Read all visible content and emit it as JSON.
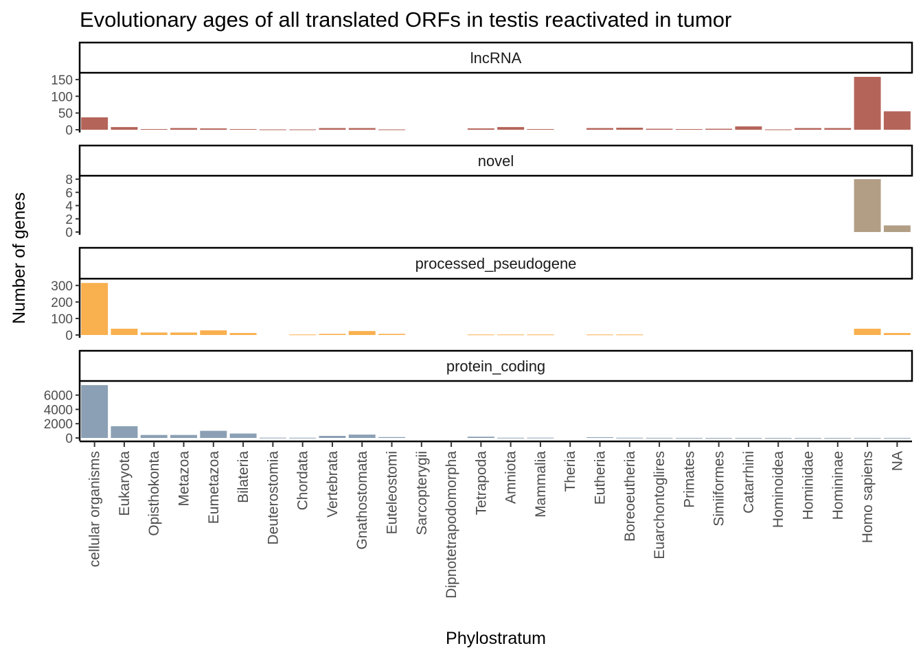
{
  "chart_data": {
    "type": "bar",
    "title": "Evolutionary ages of all translated ORFs in testis reactivated in tumor",
    "xlabel": "Phylostratum",
    "ylabel": "Number of genes",
    "grid": false,
    "legend": "none",
    "categories": [
      "cellular organisms",
      "Eukaryota",
      "Opisthokonta",
      "Metazoa",
      "Eumetazoa",
      "Bilateria",
      "Deuterostomia",
      "Chordata",
      "Vertebrata",
      "Gnathostomata",
      "Euteleostomi",
      "Sarcopterygii",
      "Dipnotetrapodomorpha",
      "Tetrapoda",
      "Amniota",
      "Mammalia",
      "Theria",
      "Eutheria",
      "Boreoeutheria",
      "Euarchontoglires",
      "Primates",
      "Simiiformes",
      "Catarrhini",
      "Hominoidea",
      "Hominidae",
      "Homininae",
      "Homo sapiens",
      "NA"
    ],
    "facets": [
      {
        "name": "lncRNA",
        "color": "#B5645A",
        "ylim": [
          0,
          160
        ],
        "yticks": [
          0,
          50,
          100,
          150
        ],
        "values": [
          37,
          8,
          2,
          5,
          4,
          2,
          1,
          1,
          5,
          5,
          1,
          null,
          null,
          4,
          8,
          2,
          null,
          5,
          6,
          3,
          2,
          3,
          10,
          1,
          5,
          5,
          158,
          55
        ]
      },
      {
        "name": "novel",
        "color": "#B19E85",
        "ylim": [
          0,
          8
        ],
        "yticks": [
          0,
          2,
          4,
          6,
          8
        ],
        "values": [
          null,
          null,
          null,
          null,
          null,
          null,
          null,
          null,
          null,
          null,
          null,
          null,
          null,
          null,
          null,
          null,
          null,
          null,
          null,
          null,
          null,
          null,
          null,
          null,
          null,
          null,
          8,
          1
        ]
      },
      {
        "name": "processed_pseudogene",
        "color": "#F9B04F",
        "ylim": [
          0,
          320
        ],
        "yticks": [
          0,
          100,
          200,
          300
        ],
        "values": [
          315,
          38,
          15,
          15,
          28,
          12,
          null,
          3,
          7,
          24,
          7,
          null,
          null,
          3,
          3,
          3,
          null,
          3,
          3,
          null,
          null,
          null,
          null,
          null,
          null,
          null,
          38,
          12
        ]
      },
      {
        "name": "protein_coding",
        "color": "#8BA0B4",
        "ylim": [
          0,
          7500
        ],
        "yticks": [
          0,
          2000,
          4000,
          6000
        ],
        "values": [
          7400,
          1650,
          420,
          420,
          1000,
          620,
          40,
          30,
          290,
          470,
          120,
          null,
          null,
          180,
          30,
          40,
          null,
          100,
          30,
          20,
          10,
          5,
          5,
          5,
          5,
          5,
          10,
          10
        ]
      }
    ]
  }
}
